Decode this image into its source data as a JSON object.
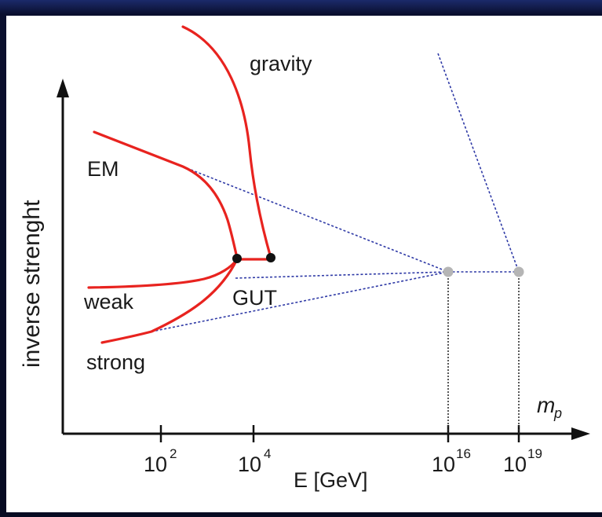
{
  "diagram": {
    "y_axis_label": "inverse strenght",
    "x_axis_label": "E [GeV]",
    "curve_labels": {
      "gravity": "gravity",
      "em": "EM",
      "weak": "weak",
      "strong": "strong",
      "gut": "GUT"
    },
    "ticks": [
      {
        "base": "10",
        "exp": "2"
      },
      {
        "base": "10",
        "exp": "4"
      },
      {
        "base": "10",
        "exp": "16"
      },
      {
        "base": "10",
        "exp": "19"
      }
    ],
    "planck_mass_label": {
      "base": "m",
      "sub": "p"
    },
    "colors": {
      "frame": "#0b1030",
      "panel": "#ffffff",
      "curves": "#e8231f",
      "dashed": "#2f3aa6",
      "points_black": "#111111",
      "points_grey": "#b5b5b5",
      "axes": "#111111"
    }
  }
}
